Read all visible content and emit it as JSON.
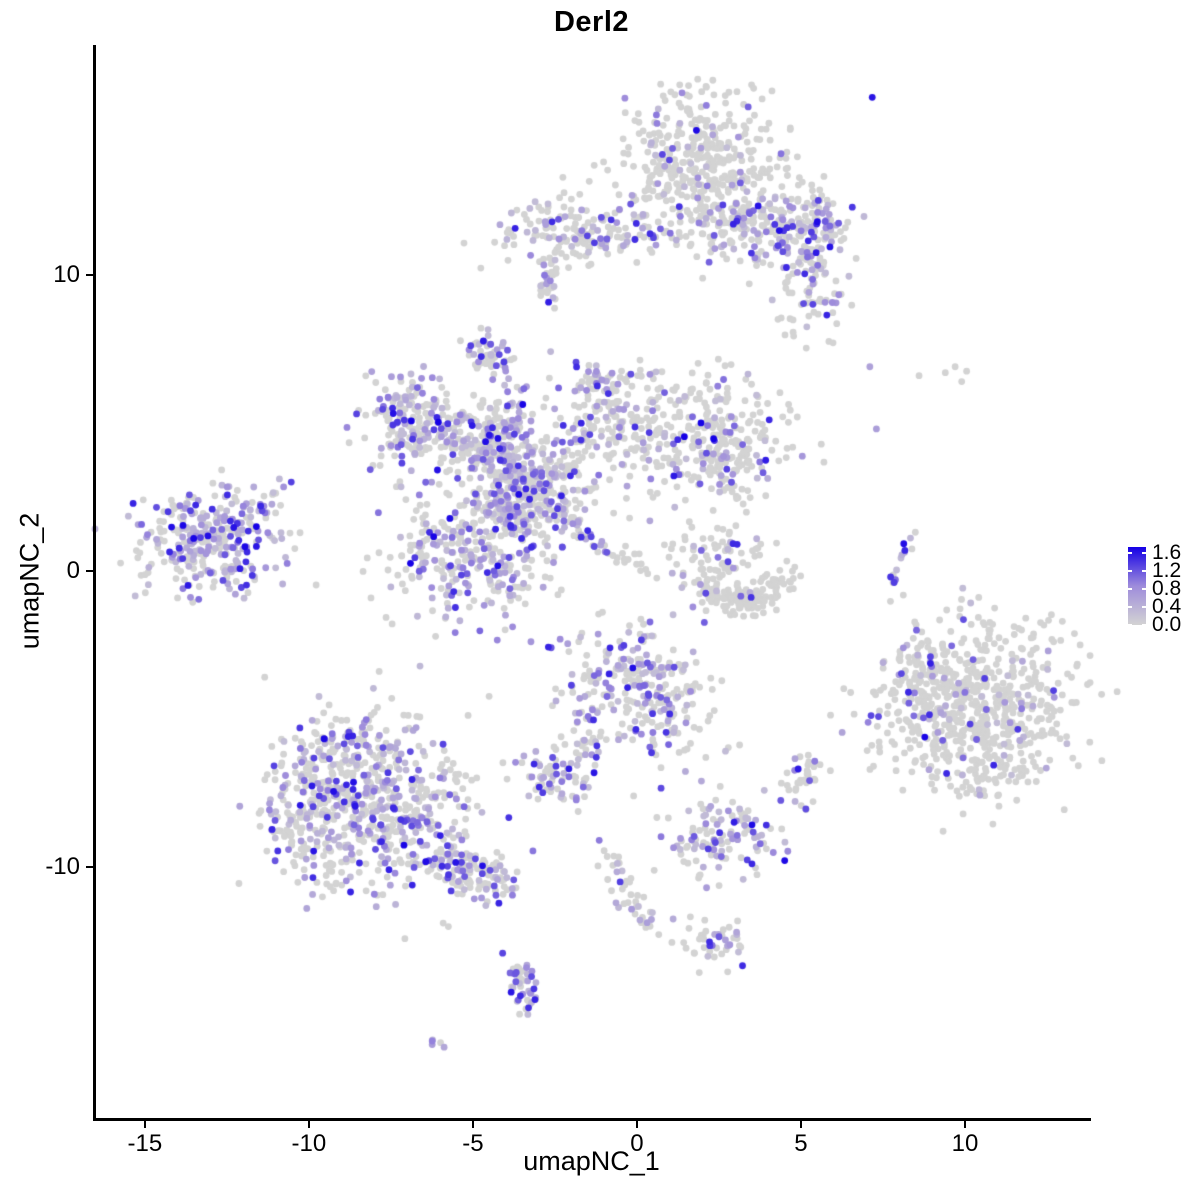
{
  "chart_data": {
    "type": "scatter",
    "title": "Derl2",
    "xlabel": "umapNC_1",
    "ylabel": "umapNC_2",
    "xlim": [
      -16.52,
      13.75
    ],
    "ylim": [
      -18.48,
      17.77
    ],
    "x_ticks": [
      -15,
      -10,
      -5,
      0,
      5,
      10
    ],
    "x_tick_labels": [
      "-15",
      "-10",
      "-5",
      "0",
      "5",
      "10"
    ],
    "y_ticks": [
      10,
      0,
      -10
    ],
    "y_tick_labels": [
      "10",
      "0",
      "-10"
    ],
    "grid": false,
    "legend": {
      "position": "right",
      "tick_labels": [
        "1.6",
        "1.2",
        "0.8",
        "0.4",
        "0.0"
      ],
      "tick_values": [
        1.6,
        1.2,
        0.8,
        0.4,
        0.0
      ],
      "limits": [
        0,
        1.6
      ],
      "low_color": "#D3D3D3",
      "mid_color": "#9E8CDB",
      "high_color": "#1500E6"
    },
    "point_style": {
      "radius": 3.4,
      "gray_color": "#D3D3D3"
    },
    "seed": 42,
    "clusters": [
      {
        "id": "top-main",
        "kind": "blob",
        "cx": 1.9,
        "cy": 13.9,
        "sx": 1.35,
        "sy": 1.15,
        "n": 380,
        "frac": 0.13
      },
      {
        "id": "top-lower",
        "kind": "blob",
        "cx": 3.0,
        "cy": 11.6,
        "sx": 0.95,
        "sy": 0.75,
        "n": 160,
        "frac": 0.22
      },
      {
        "id": "top-right-arm",
        "kind": "blob",
        "cx": 5.2,
        "cy": 11.8,
        "sx": 0.75,
        "sy": 0.65,
        "n": 130,
        "frac": 0.45
      },
      {
        "id": "top-right-tail",
        "kind": "blob",
        "cx": 5.3,
        "cy": 9.5,
        "sx": 0.55,
        "sy": 0.85,
        "n": 90,
        "frac": 0.35
      },
      {
        "id": "top-left-trail",
        "kind": "trail",
        "pts": [
          [
            -1.5,
            11.2
          ],
          [
            0.9,
            11.3
          ]
        ],
        "w": 0.25,
        "n": 45,
        "frac": 0.3
      },
      {
        "id": "upperleft-blob",
        "kind": "blob",
        "cx": -2.2,
        "cy": 11.5,
        "sx": 1.0,
        "sy": 0.65,
        "n": 140,
        "frac": 0.35
      },
      {
        "id": "upperleft-drip",
        "kind": "trail",
        "pts": [
          [
            -2.8,
            10.5
          ],
          [
            -2.6,
            8.9
          ]
        ],
        "w": 0.15,
        "n": 22,
        "frac": 0.3
      },
      {
        "id": "small-dense-7",
        "kind": "blob",
        "cx": -4.6,
        "cy": 7.4,
        "sx": 0.3,
        "sy": 0.4,
        "n": 50,
        "frac": 0.55
      },
      {
        "id": "star-topleft",
        "kind": "blob",
        "cx": -6.7,
        "cy": 5.1,
        "sx": 0.75,
        "sy": 0.7,
        "n": 190,
        "frac": 0.42
      },
      {
        "id": "star-bridge",
        "kind": "blob",
        "cx": -4.9,
        "cy": 4.3,
        "sx": 0.8,
        "sy": 0.55,
        "n": 130,
        "frac": 0.3
      },
      {
        "id": "star-vert-arm",
        "kind": "blob",
        "cx": -3.9,
        "cy": 3.9,
        "sx": 0.5,
        "sy": 1.2,
        "n": 190,
        "frac": 0.45
      },
      {
        "id": "star-core",
        "kind": "blob",
        "cx": -2.9,
        "cy": 2.9,
        "sx": 0.85,
        "sy": 0.8,
        "n": 210,
        "frac": 0.45
      },
      {
        "id": "star-upper-arm",
        "kind": "blob",
        "cx": -0.9,
        "cy": 5.3,
        "sx": 1.0,
        "sy": 0.9,
        "n": 150,
        "frac": 0.28
      },
      {
        "id": "star-peak",
        "kind": "blob",
        "cx": -1.2,
        "cy": 6.4,
        "sx": 0.3,
        "sy": 0.4,
        "n": 25,
        "frac": 0.5
      },
      {
        "id": "star-right-lobe",
        "kind": "blob",
        "cx": 2.0,
        "cy": 4.6,
        "sx": 1.3,
        "sy": 1.05,
        "n": 280,
        "frac": 0.22
      },
      {
        "id": "star-right-edge",
        "kind": "blob",
        "cx": 3.1,
        "cy": 3.6,
        "sx": 0.5,
        "sy": 0.6,
        "n": 60,
        "frac": 0.2
      },
      {
        "id": "star-streak",
        "kind": "trail",
        "pts": [
          [
            -2.6,
            2.3
          ],
          [
            -0.9,
            0.6
          ]
        ],
        "w": 0.12,
        "n": 30,
        "frac": 0.75
      },
      {
        "id": "streak-gray-tail",
        "kind": "trail",
        "pts": [
          [
            -0.8,
            0.5
          ],
          [
            0.8,
            -0.1
          ]
        ],
        "w": 0.15,
        "n": 15,
        "frac": 0.1
      },
      {
        "id": "star-bottom-lobe",
        "kind": "blob",
        "cx": -5.0,
        "cy": 0.6,
        "sx": 1.35,
        "sy": 1.15,
        "n": 330,
        "frac": 0.4
      },
      {
        "id": "star-neck",
        "kind": "blob",
        "cx": -4.1,
        "cy": 1.9,
        "sx": 0.5,
        "sy": 0.5,
        "n": 60,
        "frac": 0.4
      },
      {
        "id": "far-left-main",
        "kind": "blob",
        "cx": -13.0,
        "cy": 1.0,
        "sx": 1.15,
        "sy": 0.85,
        "n": 300,
        "frac": 0.55
      },
      {
        "id": "far-left-tail",
        "kind": "trail",
        "pts": [
          [
            -11.9,
            2.0
          ],
          [
            -10.8,
            2.7
          ]
        ],
        "w": 0.2,
        "n": 22,
        "frac": 0.5
      },
      {
        "id": "crescent-top",
        "kind": "blob",
        "cx": 2.7,
        "cy": 0.6,
        "sx": 0.95,
        "sy": 0.55,
        "n": 70,
        "frac": 0.22
      },
      {
        "id": "crescent-arc",
        "kind": "trail",
        "pts": [
          [
            1.8,
            -0.4
          ],
          [
            3.0,
            -1.45
          ],
          [
            4.7,
            -0.25
          ]
        ],
        "w": 0.28,
        "n": 140,
        "frac": 0.04
      },
      {
        "id": "right-strip",
        "kind": "trail",
        "pts": [
          [
            8.3,
            1.2
          ],
          [
            7.9,
            0.4
          ],
          [
            7.8,
            -0.5
          ]
        ],
        "w": 0.1,
        "n": 14,
        "frac": 0.65
      },
      {
        "id": "right-big-main",
        "kind": "blob",
        "cx": 10.3,
        "cy": -4.4,
        "sx": 1.55,
        "sy": 1.45,
        "n": 620,
        "frac": 0.12
      },
      {
        "id": "right-big-sublobe",
        "kind": "blob",
        "cx": 8.5,
        "cy": -3.9,
        "sx": 0.5,
        "sy": 0.95,
        "n": 70,
        "frac": 0.18
      },
      {
        "id": "right-big-bottom",
        "kind": "blob",
        "cx": 10.6,
        "cy": -6.9,
        "sx": 0.7,
        "sy": 0.4,
        "n": 40,
        "frac": 0.1
      },
      {
        "id": "botleft-main",
        "kind": "blob",
        "cx": -8.2,
        "cy": -7.9,
        "sx": 1.5,
        "sy": 1.35,
        "n": 620,
        "frac": 0.45
      },
      {
        "id": "botleft-top-ext",
        "kind": "blob",
        "cx": -9.0,
        "cy": -6.0,
        "sx": 0.8,
        "sy": 0.5,
        "n": 70,
        "frac": 0.4
      },
      {
        "id": "botleft-left-ext",
        "kind": "blob",
        "cx": -10.3,
        "cy": -8.6,
        "sx": 0.5,
        "sy": 0.8,
        "n": 60,
        "frac": 0.4
      },
      {
        "id": "botleft-arm",
        "kind": "trail",
        "pts": [
          [
            -6.3,
            -9.5
          ],
          [
            -4.1,
            -10.7
          ]
        ],
        "w": 0.45,
        "n": 130,
        "frac": 0.35
      },
      {
        "id": "mid-cluster",
        "kind": "blob",
        "cx": -0.2,
        "cy": -3.9,
        "sx": 1.15,
        "sy": 1.05,
        "n": 230,
        "frac": 0.42
      },
      {
        "id": "mid-left-arm",
        "kind": "trail",
        "pts": [
          [
            -1.3,
            -4.9
          ],
          [
            -1.7,
            -6.2
          ]
        ],
        "w": 0.2,
        "n": 25,
        "frac": 0.45
      },
      {
        "id": "mid-right-edge",
        "kind": "blob",
        "cx": 1.2,
        "cy": -4.6,
        "sx": 0.4,
        "sy": 0.7,
        "n": 40,
        "frac": 0.15
      },
      {
        "id": "small-dense-m7",
        "kind": "blob",
        "cx": -2.4,
        "cy": -6.9,
        "sx": 0.6,
        "sy": 0.5,
        "n": 75,
        "frac": 0.6
      },
      {
        "id": "small-right-m7",
        "kind": "blob",
        "cx": 5.0,
        "cy": -7.1,
        "sx": 0.35,
        "sy": 0.4,
        "n": 35,
        "frac": 0.25
      },
      {
        "id": "cluster-m9",
        "kind": "blob",
        "cx": 2.5,
        "cy": -9.0,
        "sx": 0.8,
        "sy": 0.75,
        "n": 120,
        "frac": 0.45
      },
      {
        "id": "trail-m10",
        "kind": "trail",
        "pts": [
          [
            -0.75,
            -10.0
          ],
          [
            0.4,
            -12.2
          ]
        ],
        "w": 0.25,
        "n": 40,
        "frac": 0.45
      },
      {
        "id": "small-m12",
        "kind": "blob",
        "cx": 2.4,
        "cy": -12.6,
        "sx": 0.5,
        "sy": 0.5,
        "n": 45,
        "frac": 0.25
      },
      {
        "id": "arc-m14",
        "kind": "trail",
        "pts": [
          [
            -3.7,
            -13.3
          ],
          [
            -3.1,
            -14.2
          ],
          [
            -3.35,
            -15.0
          ]
        ],
        "w": 0.25,
        "n": 45,
        "frac": 0.65
      },
      {
        "id": "tiny-m16",
        "kind": "blob",
        "cx": -6.0,
        "cy": -15.9,
        "sx": 0.18,
        "sy": 0.12,
        "n": 5,
        "frac": 0.8
      }
    ],
    "singles": [
      [
        7.1,
        6.9,
        0.55
      ],
      [
        8.6,
        6.6,
        0
      ],
      [
        9.4,
        6.7,
        0
      ],
      [
        9.7,
        6.9,
        0
      ],
      [
        9.9,
        6.4,
        0
      ],
      [
        10.05,
        6.75,
        0
      ],
      [
        7.3,
        4.8,
        0.6
      ],
      [
        -11.6,
        1.5,
        1.6
      ],
      [
        5.5,
        11.8,
        1.55
      ],
      [
        0.2,
        -1.8,
        0
      ],
      [
        0.5,
        -2.2,
        0
      ],
      [
        -1.15,
        -9.1,
        0.9
      ],
      [
        -1.0,
        -9.45,
        0
      ],
      [
        2.1,
        -6.3,
        0
      ],
      [
        -0.1,
        -7.6,
        0
      ]
    ]
  }
}
